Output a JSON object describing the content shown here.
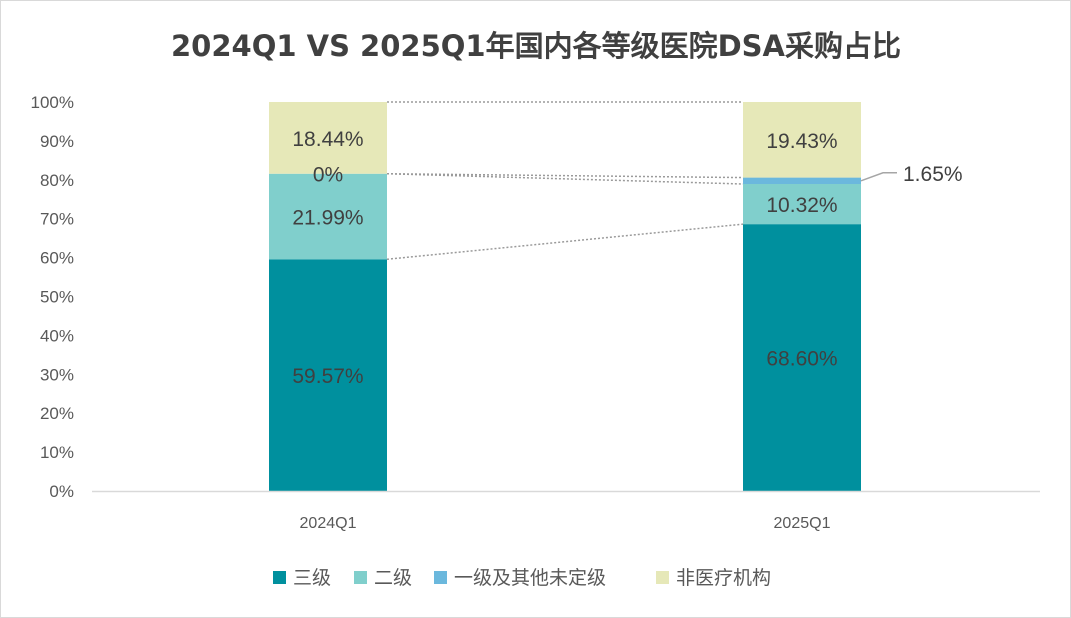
{
  "chart_data": {
    "type": "bar",
    "stacked": "percent",
    "title": "2024Q1 VS 2025Q1年国内各等级医院DSA采购占比",
    "categories": [
      "2024Q1",
      "2025Q1"
    ],
    "series": [
      {
        "name": "三级",
        "color": "#00909e",
        "values": [
          59.57,
          68.6
        ],
        "labels": [
          "59.57%",
          "68.60%"
        ]
      },
      {
        "name": "二级",
        "color": "#80cfcc",
        "values": [
          21.99,
          10.32
        ],
        "labels": [
          "21.99%",
          "10.32%"
        ]
      },
      {
        "name": "一级及其他未定级",
        "color": "#6bb8dd",
        "values": [
          0,
          1.65
        ],
        "labels": [
          "0%",
          "1.65%"
        ]
      },
      {
        "name": "非医疗机构",
        "color": "#e6e8b8",
        "values": [
          18.44,
          19.43
        ],
        "labels": [
          "18.44%",
          "19.43%"
        ]
      }
    ],
    "ylim": [
      0,
      100
    ],
    "yticks": [
      "0%",
      "10%",
      "20%",
      "30%",
      "40%",
      "50%",
      "60%",
      "70%",
      "80%",
      "90%",
      "100%"
    ],
    "series_lines": true,
    "legend_position": "bottom",
    "grid": false
  }
}
